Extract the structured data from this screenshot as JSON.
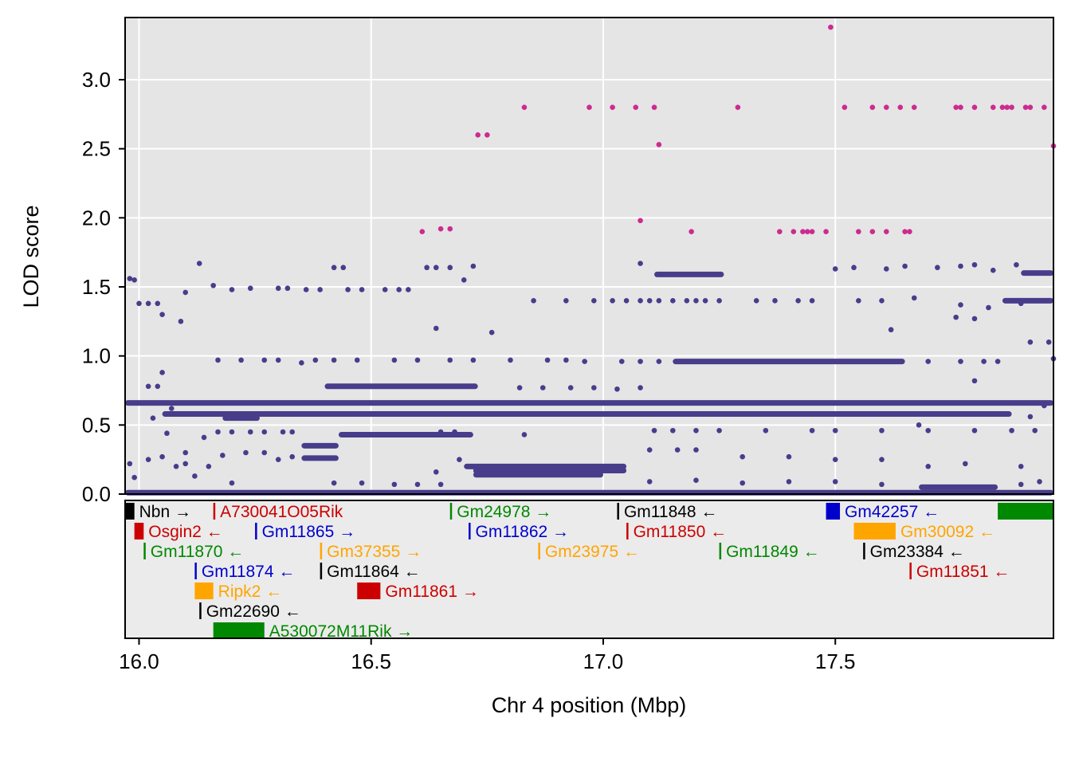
{
  "chart_data": {
    "type": "scatter",
    "xlabel": "Chr 4 position (Mbp)",
    "ylabel": "LOD score",
    "xlim": [
      15.97,
      17.97
    ],
    "ylim": [
      0.0,
      3.45
    ],
    "xticks": [
      "16.0",
      "16.5",
      "17.0",
      "17.5"
    ],
    "xtick_values": [
      16.0,
      16.5,
      17.0,
      17.5
    ],
    "yticks": [
      "0.0",
      "0.5",
      "1.0",
      "1.5",
      "2.0",
      "2.5",
      "3.0"
    ],
    "ytick_values": [
      0.0,
      0.5,
      1.0,
      1.5,
      2.0,
      2.5,
      3.0
    ],
    "grid": true,
    "colors": {
      "panel_bg": "#e5e5e5",
      "gene_panel_bg": "#ebebeb",
      "grid": "#ffffff",
      "points_low": "#483d8b",
      "points_high": "#cc2b8f"
    },
    "bands": [
      {
        "y": 0.66,
        "x": [
          15.97,
          17.97
        ]
      },
      {
        "y": 0.58,
        "x": [
          16.05,
          17.88
        ]
      },
      {
        "y": 0.78,
        "x": [
          16.4,
          16.73
        ]
      },
      {
        "y": 0.43,
        "x": [
          16.43,
          16.72
        ]
      },
      {
        "y": 0.2,
        "x": [
          16.7,
          17.05
        ]
      },
      {
        "y": 0.17,
        "x": [
          16.72,
          17.05
        ]
      },
      {
        "y": 0.14,
        "x": [
          16.72,
          17.0
        ]
      },
      {
        "y": 0.96,
        "x": [
          17.15,
          17.65
        ]
      },
      {
        "y": 1.59,
        "x": [
          17.11,
          17.26
        ]
      },
      {
        "y": 0.05,
        "x": [
          17.68,
          17.85
        ]
      },
      {
        "y": 0.01,
        "x": [
          15.97,
          17.97
        ]
      },
      {
        "y": 1.6,
        "x": [
          17.9,
          17.97
        ]
      },
      {
        "y": 1.4,
        "x": [
          17.86,
          17.97
        ]
      },
      {
        "y": 0.55,
        "x": [
          16.18,
          16.26
        ]
      },
      {
        "y": 0.35,
        "x": [
          16.35,
          16.43
        ]
      },
      {
        "y": 0.26,
        "x": [
          16.35,
          16.43
        ]
      }
    ],
    "highlight_points": [
      {
        "x": 16.61,
        "y": 1.9
      },
      {
        "x": 16.65,
        "y": 1.92
      },
      {
        "x": 16.67,
        "y": 1.92
      },
      {
        "x": 16.73,
        "y": 2.6
      },
      {
        "x": 16.75,
        "y": 2.6
      },
      {
        "x": 16.83,
        "y": 2.8
      },
      {
        "x": 16.97,
        "y": 2.8
      },
      {
        "x": 17.02,
        "y": 2.8
      },
      {
        "x": 17.07,
        "y": 2.8
      },
      {
        "x": 17.08,
        "y": 1.98
      },
      {
        "x": 17.11,
        "y": 2.8
      },
      {
        "x": 17.12,
        "y": 2.53
      },
      {
        "x": 17.19,
        "y": 1.9
      },
      {
        "x": 17.29,
        "y": 2.8
      },
      {
        "x": 17.38,
        "y": 1.9
      },
      {
        "x": 17.41,
        "y": 1.9
      },
      {
        "x": 17.43,
        "y": 1.9
      },
      {
        "x": 17.44,
        "y": 1.9
      },
      {
        "x": 17.45,
        "y": 1.9
      },
      {
        "x": 17.48,
        "y": 1.9
      },
      {
        "x": 17.49,
        "y": 3.38
      },
      {
        "x": 17.52,
        "y": 2.8
      },
      {
        "x": 17.55,
        "y": 1.9
      },
      {
        "x": 17.58,
        "y": 2.8
      },
      {
        "x": 17.58,
        "y": 1.9
      },
      {
        "x": 17.61,
        "y": 2.8
      },
      {
        "x": 17.61,
        "y": 1.9
      },
      {
        "x": 17.64,
        "y": 2.8
      },
      {
        "x": 17.65,
        "y": 1.9
      },
      {
        "x": 17.66,
        "y": 1.9
      },
      {
        "x": 17.67,
        "y": 2.8
      },
      {
        "x": 17.76,
        "y": 2.8
      },
      {
        "x": 17.77,
        "y": 2.8
      },
      {
        "x": 17.8,
        "y": 2.8
      },
      {
        "x": 17.84,
        "y": 2.8
      },
      {
        "x": 17.86,
        "y": 2.8
      },
      {
        "x": 17.87,
        "y": 2.8
      },
      {
        "x": 17.88,
        "y": 2.8
      },
      {
        "x": 17.91,
        "y": 2.8
      },
      {
        "x": 17.92,
        "y": 2.8
      },
      {
        "x": 17.95,
        "y": 2.8
      },
      {
        "x": 17.97,
        "y": 2.52
      }
    ],
    "scatter_points": [
      {
        "x": 15.98,
        "y": 1.56
      },
      {
        "x": 15.99,
        "y": 1.55
      },
      {
        "x": 16.0,
        "y": 1.38
      },
      {
        "x": 16.02,
        "y": 1.38
      },
      {
        "x": 16.04,
        "y": 1.38
      },
      {
        "x": 16.05,
        "y": 1.3
      },
      {
        "x": 16.09,
        "y": 1.25
      },
      {
        "x": 16.1,
        "y": 1.46
      },
      {
        "x": 16.13,
        "y": 1.67
      },
      {
        "x": 16.16,
        "y": 1.51
      },
      {
        "x": 16.2,
        "y": 1.48
      },
      {
        "x": 16.24,
        "y": 1.49
      },
      {
        "x": 16.3,
        "y": 1.49
      },
      {
        "x": 16.32,
        "y": 1.49
      },
      {
        "x": 16.36,
        "y": 1.48
      },
      {
        "x": 16.39,
        "y": 1.48
      },
      {
        "x": 16.42,
        "y": 1.64
      },
      {
        "x": 16.44,
        "y": 1.64
      },
      {
        "x": 16.45,
        "y": 1.48
      },
      {
        "x": 16.48,
        "y": 1.48
      },
      {
        "x": 16.53,
        "y": 1.48
      },
      {
        "x": 16.56,
        "y": 1.48
      },
      {
        "x": 16.58,
        "y": 1.48
      },
      {
        "x": 16.62,
        "y": 1.64
      },
      {
        "x": 16.64,
        "y": 1.64
      },
      {
        "x": 16.67,
        "y": 1.64
      },
      {
        "x": 16.7,
        "y": 1.55
      },
      {
        "x": 16.72,
        "y": 1.65
      },
      {
        "x": 16.64,
        "y": 1.2
      },
      {
        "x": 16.76,
        "y": 1.17
      },
      {
        "x": 16.85,
        "y": 1.4
      },
      {
        "x": 16.92,
        "y": 1.4
      },
      {
        "x": 16.98,
        "y": 1.4
      },
      {
        "x": 17.02,
        "y": 1.4
      },
      {
        "x": 17.05,
        "y": 1.4
      },
      {
        "x": 17.08,
        "y": 1.4
      },
      {
        "x": 17.1,
        "y": 1.4
      },
      {
        "x": 17.12,
        "y": 1.4
      },
      {
        "x": 17.15,
        "y": 1.4
      },
      {
        "x": 17.18,
        "y": 1.4
      },
      {
        "x": 17.2,
        "y": 1.4
      },
      {
        "x": 17.22,
        "y": 1.4
      },
      {
        "x": 17.25,
        "y": 1.4
      },
      {
        "x": 17.33,
        "y": 1.4
      },
      {
        "x": 17.37,
        "y": 1.4
      },
      {
        "x": 17.42,
        "y": 1.4
      },
      {
        "x": 17.45,
        "y": 1.4
      },
      {
        "x": 17.55,
        "y": 1.4
      },
      {
        "x": 17.6,
        "y": 1.4
      },
      {
        "x": 17.67,
        "y": 1.42
      },
      {
        "x": 17.77,
        "y": 1.37
      },
      {
        "x": 17.83,
        "y": 1.35
      },
      {
        "x": 17.08,
        "y": 1.67
      },
      {
        "x": 17.5,
        "y": 1.63
      },
      {
        "x": 17.54,
        "y": 1.64
      },
      {
        "x": 17.61,
        "y": 1.63
      },
      {
        "x": 17.65,
        "y": 1.65
      },
      {
        "x": 17.72,
        "y": 1.64
      },
      {
        "x": 17.77,
        "y": 1.65
      },
      {
        "x": 17.8,
        "y": 1.66
      },
      {
        "x": 17.84,
        "y": 1.62
      },
      {
        "x": 17.89,
        "y": 1.66
      },
      {
        "x": 17.62,
        "y": 1.19
      },
      {
        "x": 17.76,
        "y": 1.28
      },
      {
        "x": 17.8,
        "y": 1.27
      },
      {
        "x": 17.92,
        "y": 1.1
      },
      {
        "x": 17.96,
        "y": 1.1
      },
      {
        "x": 17.9,
        "y": 1.38
      },
      {
        "x": 16.05,
        "y": 0.88
      },
      {
        "x": 16.07,
        "y": 0.62
      },
      {
        "x": 16.03,
        "y": 0.55
      },
      {
        "x": 16.17,
        "y": 0.97
      },
      {
        "x": 16.22,
        "y": 0.97
      },
      {
        "x": 16.27,
        "y": 0.97
      },
      {
        "x": 16.3,
        "y": 0.97
      },
      {
        "x": 16.35,
        "y": 0.95
      },
      {
        "x": 16.38,
        "y": 0.97
      },
      {
        "x": 16.42,
        "y": 0.97
      },
      {
        "x": 16.47,
        "y": 0.97
      },
      {
        "x": 16.55,
        "y": 0.97
      },
      {
        "x": 16.6,
        "y": 0.97
      },
      {
        "x": 16.67,
        "y": 0.97
      },
      {
        "x": 16.72,
        "y": 0.97
      },
      {
        "x": 16.8,
        "y": 0.97
      },
      {
        "x": 16.88,
        "y": 0.97
      },
      {
        "x": 16.92,
        "y": 0.97
      },
      {
        "x": 16.96,
        "y": 0.96
      },
      {
        "x": 17.04,
        "y": 0.96
      },
      {
        "x": 17.08,
        "y": 0.96
      },
      {
        "x": 17.12,
        "y": 0.96
      },
      {
        "x": 17.7,
        "y": 0.96
      },
      {
        "x": 17.77,
        "y": 0.96
      },
      {
        "x": 17.82,
        "y": 0.96
      },
      {
        "x": 17.85,
        "y": 0.96
      },
      {
        "x": 17.97,
        "y": 0.98
      },
      {
        "x": 17.8,
        "y": 0.82
      },
      {
        "x": 16.82,
        "y": 0.77
      },
      {
        "x": 16.87,
        "y": 0.77
      },
      {
        "x": 16.93,
        "y": 0.77
      },
      {
        "x": 16.98,
        "y": 0.77
      },
      {
        "x": 17.03,
        "y": 0.76
      },
      {
        "x": 17.08,
        "y": 0.77
      },
      {
        "x": 16.02,
        "y": 0.78
      },
      {
        "x": 16.04,
        "y": 0.78
      },
      {
        "x": 16.06,
        "y": 0.44
      },
      {
        "x": 16.14,
        "y": 0.41
      },
      {
        "x": 16.17,
        "y": 0.45
      },
      {
        "x": 16.2,
        "y": 0.45
      },
      {
        "x": 16.24,
        "y": 0.45
      },
      {
        "x": 16.27,
        "y": 0.45
      },
      {
        "x": 16.31,
        "y": 0.45
      },
      {
        "x": 16.33,
        "y": 0.45
      },
      {
        "x": 16.65,
        "y": 0.45
      },
      {
        "x": 16.68,
        "y": 0.45
      },
      {
        "x": 16.83,
        "y": 0.43
      },
      {
        "x": 17.11,
        "y": 0.46
      },
      {
        "x": 17.15,
        "y": 0.46
      },
      {
        "x": 17.2,
        "y": 0.46
      },
      {
        "x": 17.25,
        "y": 0.46
      },
      {
        "x": 17.35,
        "y": 0.46
      },
      {
        "x": 17.45,
        "y": 0.46
      },
      {
        "x": 17.5,
        "y": 0.46
      },
      {
        "x": 17.6,
        "y": 0.46
      },
      {
        "x": 17.7,
        "y": 0.46
      },
      {
        "x": 17.8,
        "y": 0.46
      },
      {
        "x": 17.88,
        "y": 0.46
      },
      {
        "x": 17.93,
        "y": 0.46
      },
      {
        "x": 17.68,
        "y": 0.5
      },
      {
        "x": 17.95,
        "y": 0.64
      },
      {
        "x": 17.92,
        "y": 0.56
      },
      {
        "x": 17.1,
        "y": 0.32
      },
      {
        "x": 17.16,
        "y": 0.32
      },
      {
        "x": 17.2,
        "y": 0.32
      },
      {
        "x": 17.3,
        "y": 0.27
      },
      {
        "x": 17.4,
        "y": 0.27
      },
      {
        "x": 17.5,
        "y": 0.25
      },
      {
        "x": 17.6,
        "y": 0.25
      },
      {
        "x": 17.7,
        "y": 0.2
      },
      {
        "x": 17.78,
        "y": 0.22
      },
      {
        "x": 17.9,
        "y": 0.2
      },
      {
        "x": 15.98,
        "y": 0.22
      },
      {
        "x": 16.02,
        "y": 0.25
      },
      {
        "x": 16.05,
        "y": 0.27
      },
      {
        "x": 16.08,
        "y": 0.2
      },
      {
        "x": 16.1,
        "y": 0.22
      },
      {
        "x": 16.12,
        "y": 0.13
      },
      {
        "x": 16.15,
        "y": 0.2
      },
      {
        "x": 16.18,
        "y": 0.28
      },
      {
        "x": 16.23,
        "y": 0.3
      },
      {
        "x": 16.27,
        "y": 0.3
      },
      {
        "x": 16.3,
        "y": 0.25
      },
      {
        "x": 16.33,
        "y": 0.27
      },
      {
        "x": 16.1,
        "y": 0.3
      },
      {
        "x": 15.99,
        "y": 0.12
      },
      {
        "x": 16.2,
        "y": 0.08
      },
      {
        "x": 16.42,
        "y": 0.08
      },
      {
        "x": 16.48,
        "y": 0.08
      },
      {
        "x": 16.55,
        "y": 0.07
      },
      {
        "x": 16.6,
        "y": 0.07
      },
      {
        "x": 16.65,
        "y": 0.07
      },
      {
        "x": 16.69,
        "y": 0.25
      },
      {
        "x": 16.64,
        "y": 0.16
      },
      {
        "x": 17.1,
        "y": 0.09
      },
      {
        "x": 17.2,
        "y": 0.1
      },
      {
        "x": 17.3,
        "y": 0.08
      },
      {
        "x": 17.4,
        "y": 0.09
      },
      {
        "x": 17.5,
        "y": 0.09
      },
      {
        "x": 17.6,
        "y": 0.07
      },
      {
        "x": 17.9,
        "y": 0.07
      },
      {
        "x": 17.94,
        "y": 0.09
      }
    ],
    "genes": [
      {
        "name": "Nbn",
        "dir": "→",
        "color": "#000000",
        "start": 15.97,
        "end": 15.99,
        "row": 0
      },
      {
        "name": "A730041O05Rik",
        "dir": "",
        "color": "#cc0000",
        "start": 16.16,
        "end": 16.16,
        "row": 0
      },
      {
        "name": "Gm24978",
        "dir": "→",
        "color": "#008800",
        "start": 16.67,
        "end": 16.67,
        "row": 0
      },
      {
        "name": "Gm11848",
        "dir": "←",
        "color": "#000000",
        "start": 17.03,
        "end": 17.03,
        "row": 0
      },
      {
        "name": "Gm42257",
        "dir": "←",
        "color": "#0000cc",
        "start": 17.48,
        "end": 17.51,
        "row": 0
      },
      {
        "name": "",
        "dir": "",
        "color": "#008800",
        "start": 17.85,
        "end": 17.97,
        "row": 0
      },
      {
        "name": "Osgin2",
        "dir": "←",
        "color": "#cc0000",
        "start": 15.99,
        "end": 16.01,
        "row": 1
      },
      {
        "name": "Gm11865",
        "dir": "→",
        "color": "#0000cc",
        "start": 16.25,
        "end": 16.25,
        "row": 1
      },
      {
        "name": "Gm11862",
        "dir": "→",
        "color": "#0000cc",
        "start": 16.71,
        "end": 16.71,
        "row": 1
      },
      {
        "name": "Gm11850",
        "dir": "←",
        "color": "#cc0000",
        "start": 17.05,
        "end": 17.05,
        "row": 1
      },
      {
        "name": "Gm30092",
        "dir": "←",
        "color": "#ffa500",
        "start": 17.54,
        "end": 17.63,
        "row": 1
      },
      {
        "name": "Gm11870",
        "dir": "←",
        "color": "#008800",
        "start": 16.01,
        "end": 16.01,
        "row": 2
      },
      {
        "name": "Gm37355",
        "dir": "→",
        "color": "#ffa500",
        "start": 16.39,
        "end": 16.39,
        "row": 2
      },
      {
        "name": "Gm23975",
        "dir": "←",
        "color": "#ffa500",
        "start": 16.86,
        "end": 16.86,
        "row": 2
      },
      {
        "name": "Gm11849",
        "dir": "←",
        "color": "#008800",
        "start": 17.25,
        "end": 17.25,
        "row": 2
      },
      {
        "name": "Gm23384",
        "dir": "←",
        "color": "#000000",
        "start": 17.56,
        "end": 17.56,
        "row": 2
      },
      {
        "name": "Gm11874",
        "dir": "←",
        "color": "#0000cc",
        "start": 16.12,
        "end": 16.12,
        "row": 3
      },
      {
        "name": "Gm11864",
        "dir": "←",
        "color": "#000000",
        "start": 16.39,
        "end": 16.39,
        "row": 3
      },
      {
        "name": "Gm11851",
        "dir": "←",
        "color": "#cc0000",
        "start": 17.66,
        "end": 17.66,
        "row": 3
      },
      {
        "name": "Ripk2",
        "dir": "←",
        "color": "#ffa500",
        "start": 16.12,
        "end": 16.16,
        "row": 4
      },
      {
        "name": "Gm11861",
        "dir": "→",
        "color": "#cc0000",
        "start": 16.47,
        "end": 16.52,
        "row": 4
      },
      {
        "name": "Gm22690",
        "dir": "←",
        "color": "#000000",
        "start": 16.13,
        "end": 16.13,
        "row": 5
      },
      {
        "name": "A530072M11Rik",
        "dir": "→",
        "color": "#008800",
        "start": 16.16,
        "end": 16.27,
        "row": 6
      }
    ]
  }
}
